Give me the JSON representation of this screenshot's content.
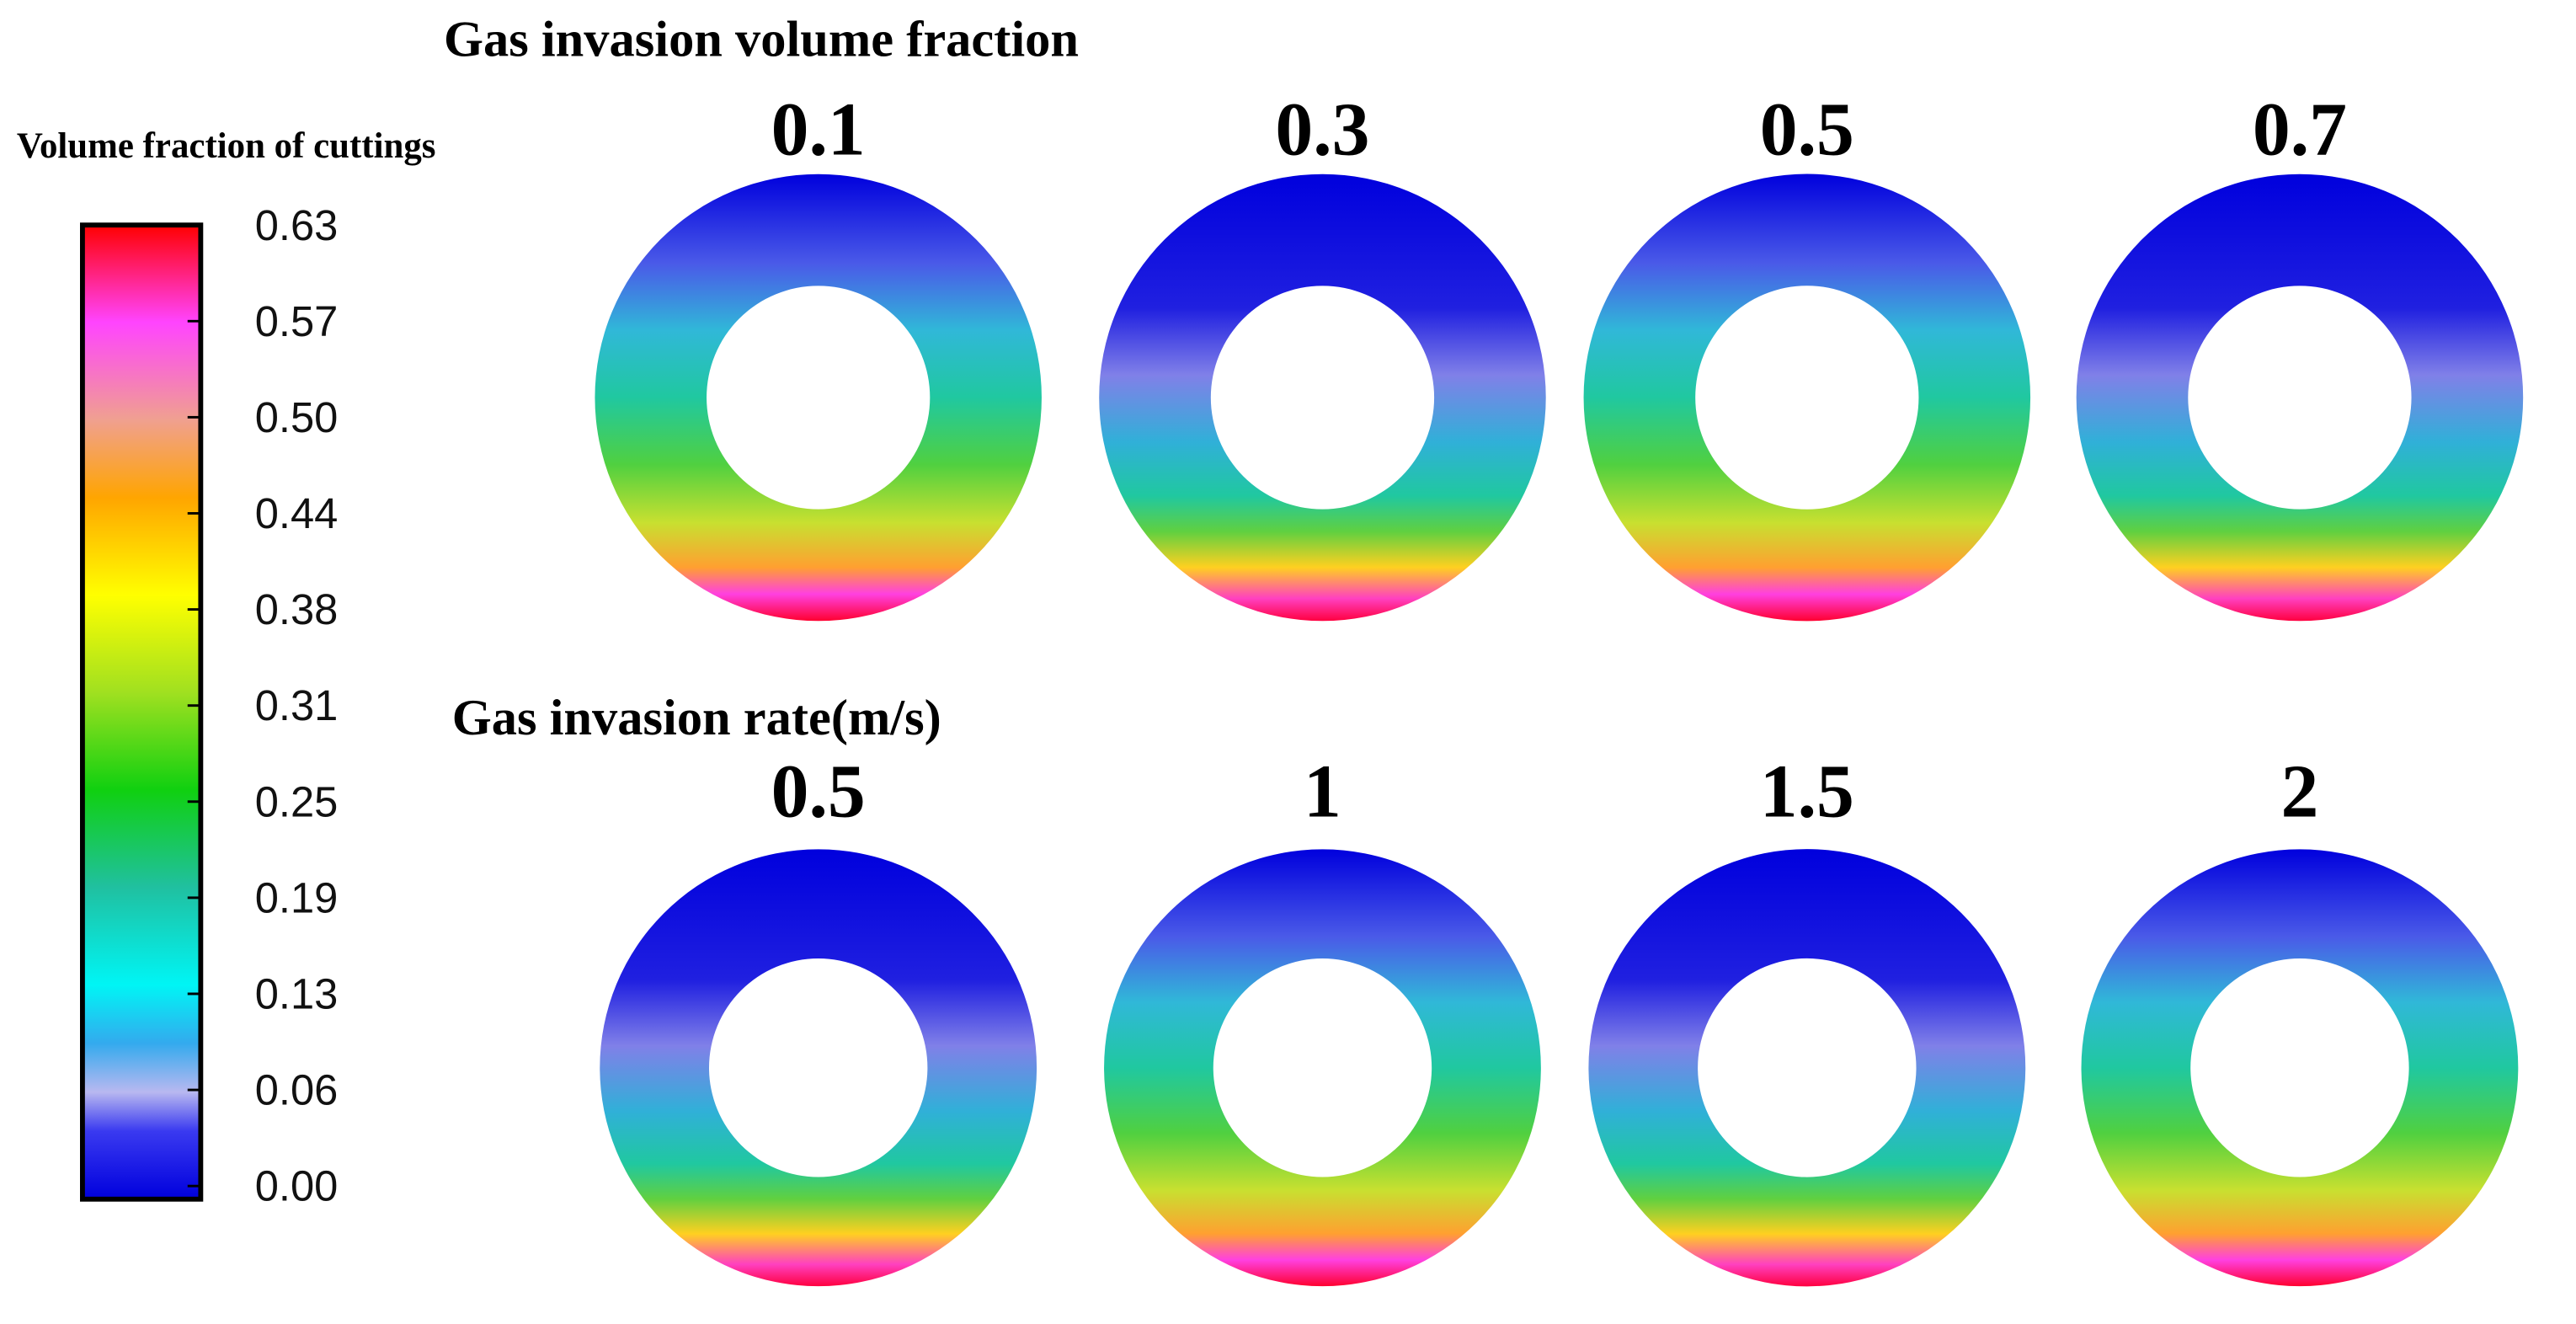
{
  "colorbar": {
    "title": "Volume fraction of cuttings",
    "ticks": [
      "0.63",
      "0.57",
      "0.50",
      "0.44",
      "0.38",
      "0.31",
      "0.25",
      "0.19",
      "0.13",
      "0.06",
      "0.00"
    ]
  },
  "rows": [
    {
      "title": "Gas invasion volume fraction",
      "labels": [
        "0.1",
        "0.3",
        "0.5",
        "0.7"
      ]
    },
    {
      "title": "Gas invasion rate(m/s)",
      "labels": [
        "0.5",
        "1",
        "1.5",
        "2"
      ]
    }
  ]
}
